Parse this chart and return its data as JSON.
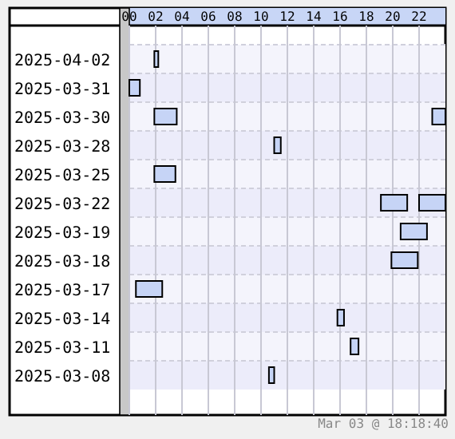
{
  "chart_data": {
    "type": "bar",
    "orientation": "horizontal",
    "categories": [
      "2025-04-02",
      "2025-03-31",
      "2025-03-30",
      "2025-03-28",
      "2025-03-25",
      "2025-03-22",
      "2025-03-19",
      "2025-03-18",
      "2025-03-17",
      "2025-03-14",
      "2025-03-11",
      "2025-03-08"
    ],
    "series": [
      {
        "color": "#c6d4f6",
        "base": [
          1.9,
          0,
          1.9,
          11.0,
          1.9,
          19.1,
          20.6,
          19.9,
          0.5,
          15.8,
          16.8,
          10.6
        ],
        "values": [
          0.3,
          0.8,
          1.7,
          0.5,
          1.6,
          2.0,
          2.0,
          2.0,
          2.0,
          0.5,
          0.6,
          0.4
        ]
      },
      {
        "color": "#c6d4f6",
        "base": [
          null,
          null,
          23,
          null,
          null,
          22,
          null,
          null,
          null,
          null,
          null,
          null
        ],
        "values": [
          null,
          null,
          1,
          null,
          null,
          2,
          null,
          null,
          null,
          null,
          null,
          null
        ]
      }
    ],
    "xlim": [
      0,
      24
    ],
    "xticks": [
      {
        "value": 0,
        "label": "00"
      },
      {
        "value": 2,
        "label": "02"
      },
      {
        "value": 4,
        "label": "04"
      },
      {
        "value": 6,
        "label": "06"
      },
      {
        "value": 8,
        "label": "08"
      },
      {
        "value": 10,
        "label": "10"
      },
      {
        "value": 12,
        "label": "12"
      },
      {
        "value": 14,
        "label": "14"
      },
      {
        "value": 16,
        "label": "16"
      },
      {
        "value": 18,
        "label": "18"
      },
      {
        "value": 20,
        "label": "20"
      },
      {
        "value": 22,
        "label": "22"
      }
    ],
    "grid": "x",
    "annotations": [
      "Mar 03 @ 18:18:40"
    ]
  }
}
